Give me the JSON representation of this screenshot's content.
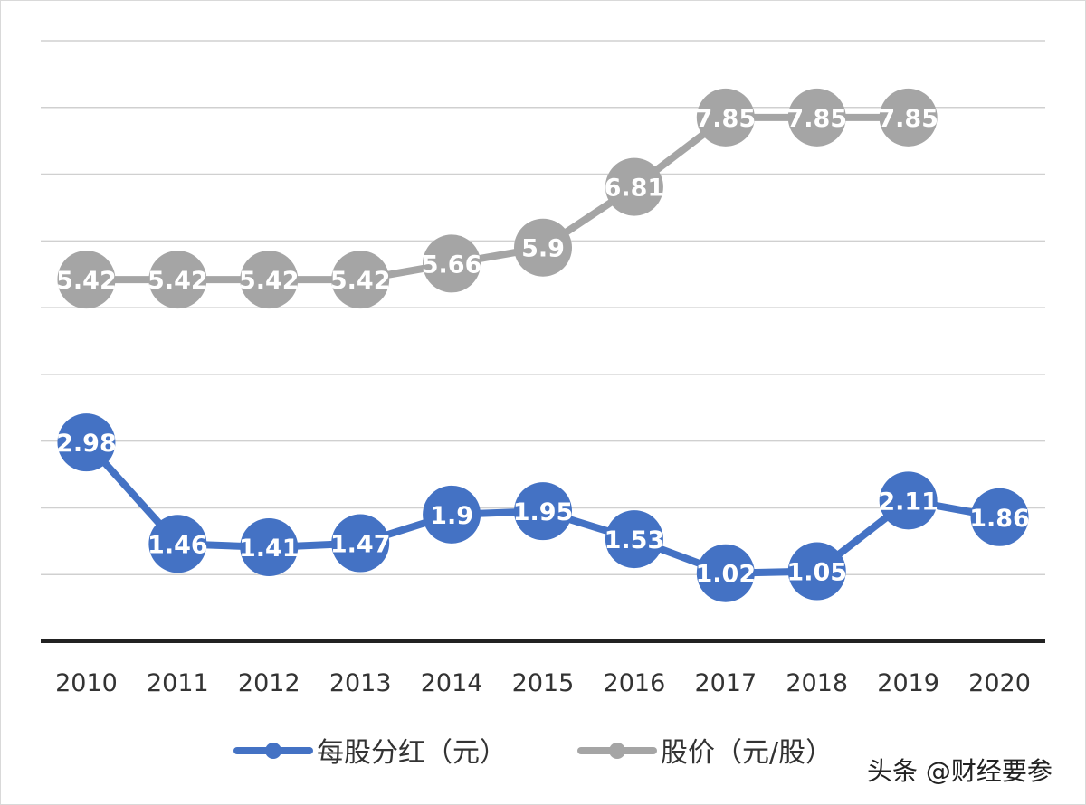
{
  "colors": {
    "dividend": "#4472C4",
    "price": "#A5A5A5",
    "grid": "#d0d0d0",
    "axis": "#222222",
    "label": "#ffffff"
  },
  "chart_data": {
    "type": "line",
    "title": "",
    "xlabel": "",
    "ylabel": "",
    "categories": [
      "2010",
      "2011",
      "2012",
      "2013",
      "2014",
      "2015",
      "2016",
      "2017",
      "2018",
      "2019",
      "2020"
    ],
    "ylim": [
      0,
      9
    ],
    "grid": true,
    "legend_position": "bottom",
    "series": [
      {
        "name": "每股分红（元）",
        "color": "#4472C4",
        "values": [
          2.98,
          1.46,
          1.41,
          1.47,
          1.9,
          1.95,
          1.53,
          1.02,
          1.05,
          2.11,
          1.86
        ],
        "labels": [
          "2.98",
          "1.46",
          "1.41",
          "1.47",
          "1.9",
          "1.95",
          "1.53",
          "1.02",
          "1.05",
          "2.11",
          "1.86"
        ]
      },
      {
        "name": "股价（元/股）",
        "color": "#A5A5A5",
        "values": [
          5.42,
          5.42,
          5.42,
          5.42,
          5.66,
          5.9,
          6.81,
          7.85,
          7.85,
          7.85,
          null
        ],
        "labels": [
          "5.42",
          "5.42",
          "5.42",
          "5.42",
          "5.66",
          "5.9",
          "6.81",
          "7.85",
          "7.85",
          "7.85",
          null
        ]
      }
    ]
  },
  "watermark": "头条 @财经要参"
}
